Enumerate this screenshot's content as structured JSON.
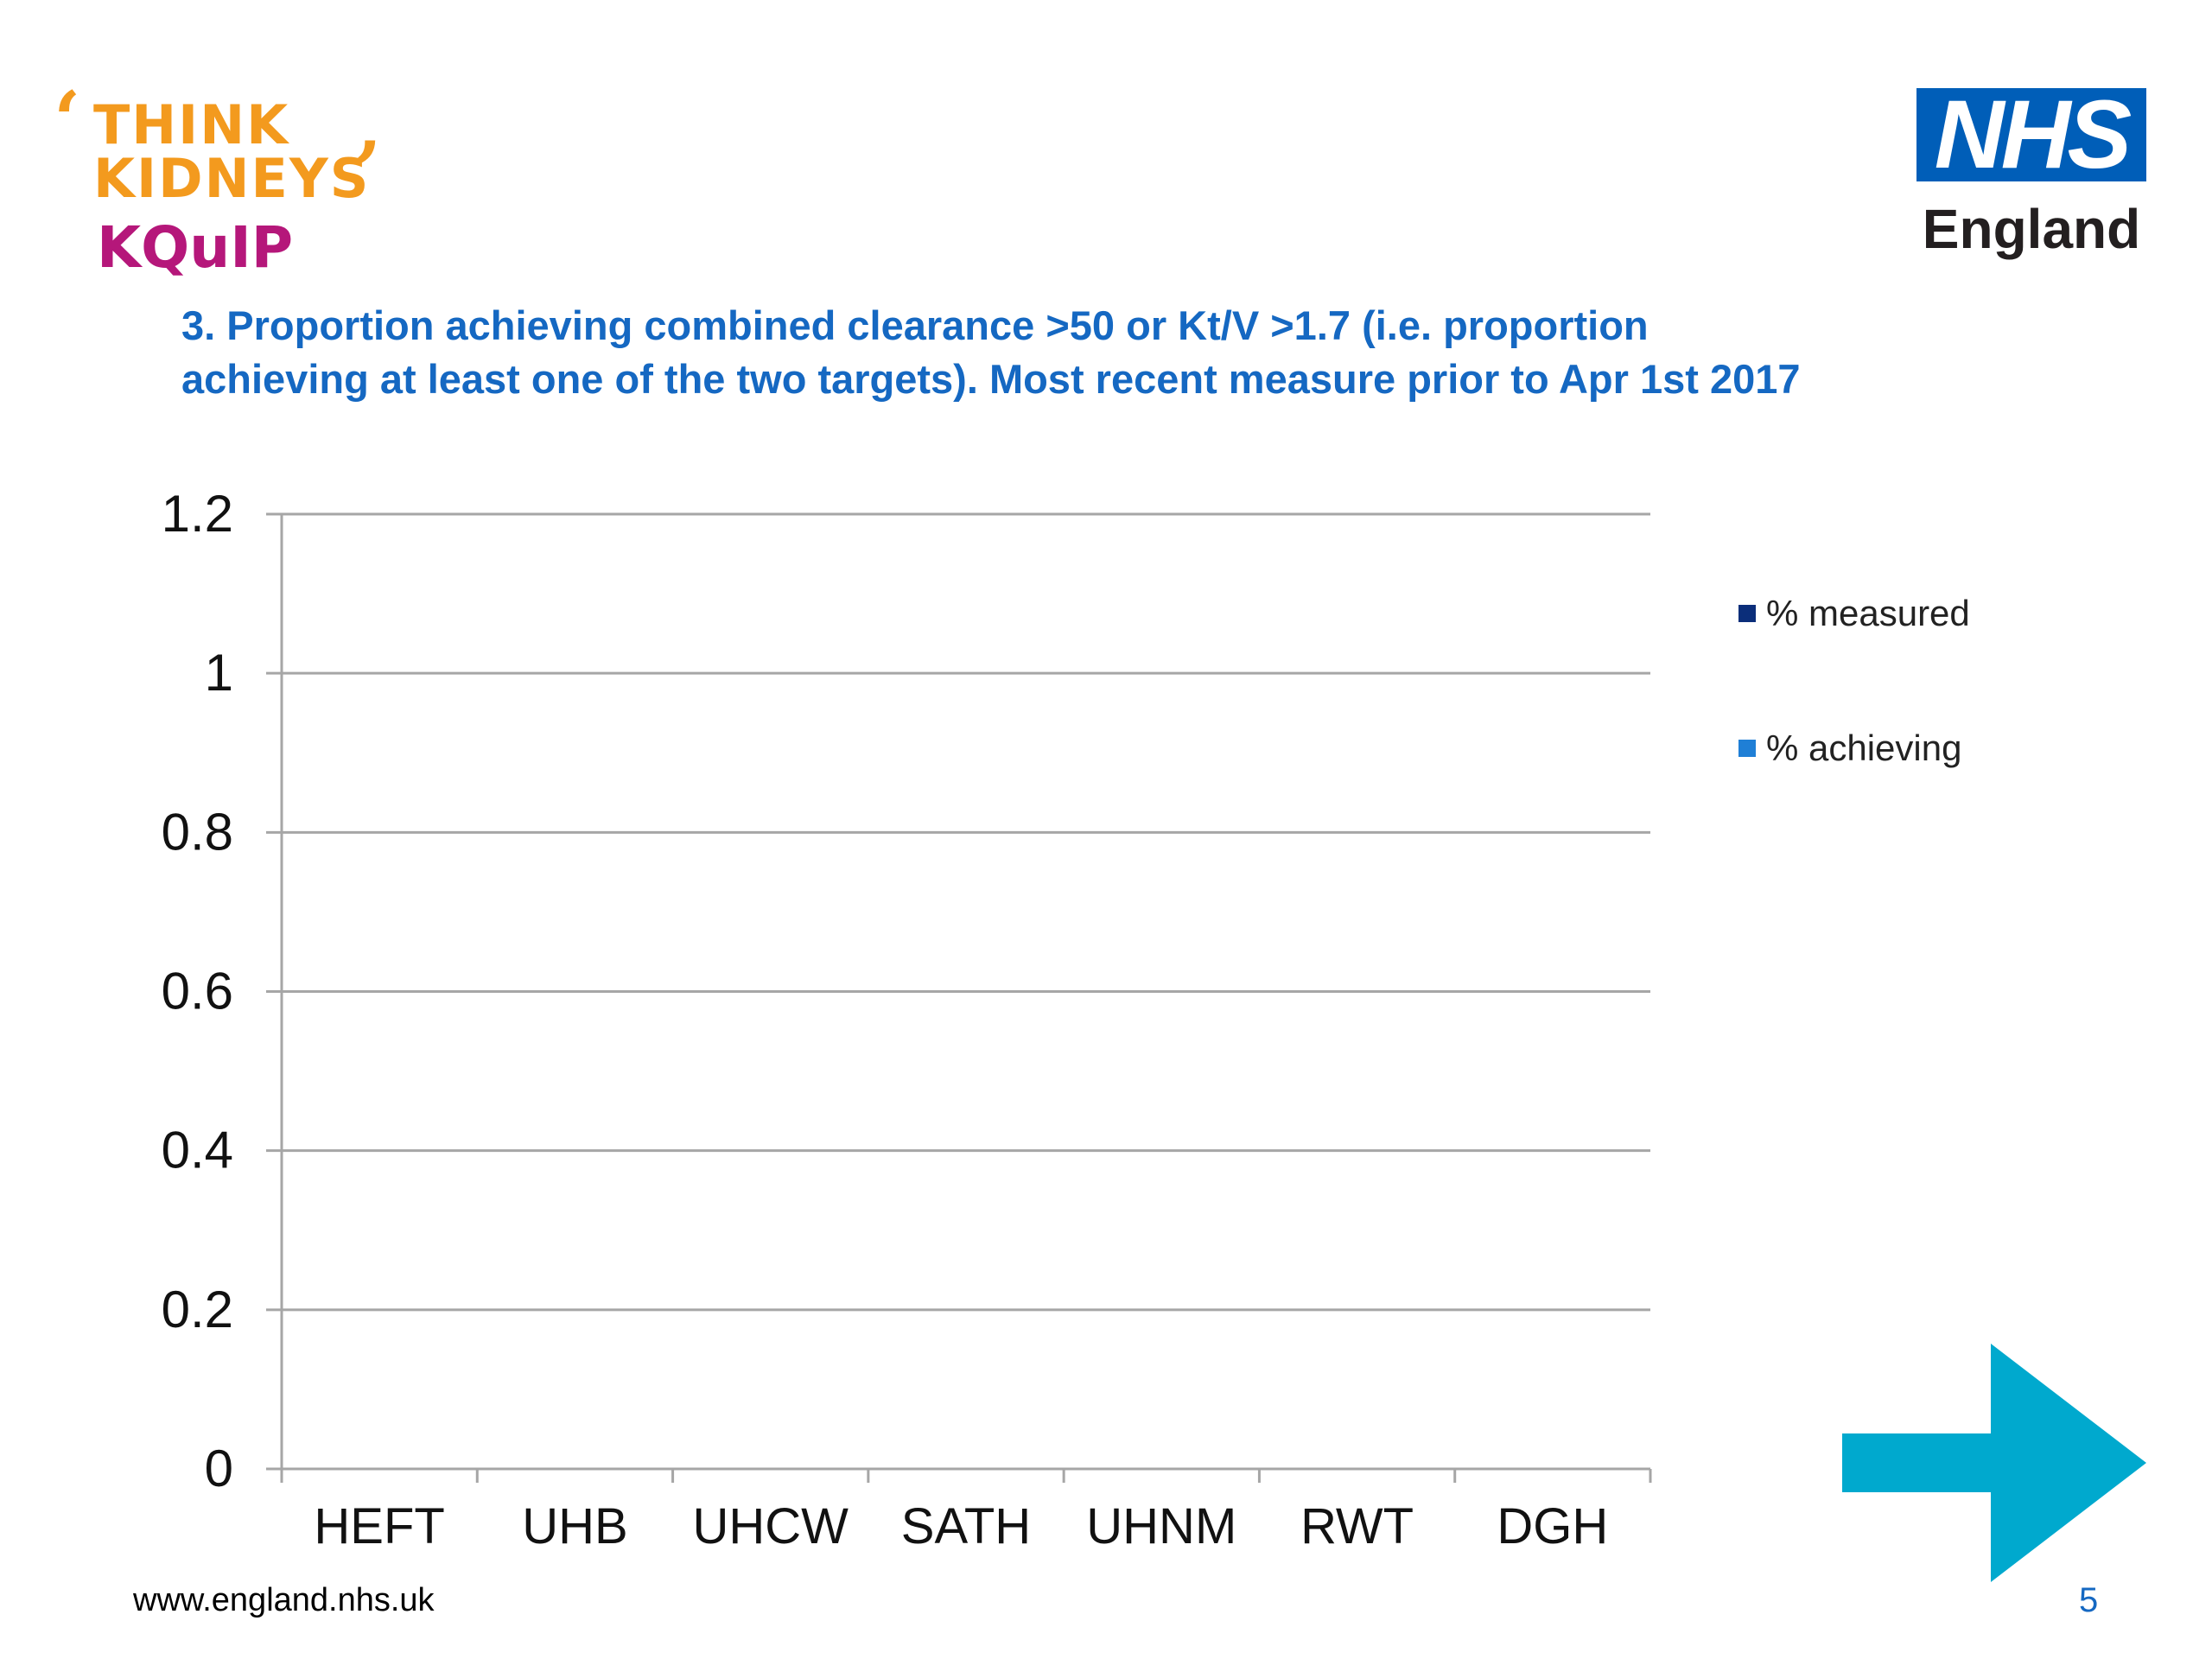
{
  "logos": {
    "think_line1": "THINK",
    "think_line2": "KIDNEYS",
    "kquip": "KQuIP",
    "nhs": "NHS",
    "nhs_region": "England"
  },
  "slide": {
    "title_line1": "3. Proportion achieving combined clearance >50 or Kt/V >1.7 (i.e. proportion",
    "title_line2": "achieving at least one of the two targets). Most recent measure prior to Apr 1st 2017",
    "footer_url": "www.england.nhs.uk",
    "page_number": "5"
  },
  "chart_data": {
    "type": "bar",
    "categories": [
      "HEFT",
      "UHB",
      "UHCW",
      "SATH",
      "UHNM",
      "RWT",
      "DGH"
    ],
    "series": [
      {
        "name": "% measured",
        "values": [
          0,
          0,
          0,
          0,
          0,
          0,
          0
        ],
        "color": "#0b2e7a"
      },
      {
        "name": "% achieving",
        "values": [
          0,
          0,
          0,
          0,
          0,
          0,
          0
        ],
        "color": "#1f7fd6"
      }
    ],
    "yticks": [
      "0",
      "0.2",
      "0.4",
      "0.6",
      "0.8",
      "1",
      "1.2"
    ],
    "ylim": [
      0,
      1.2
    ],
    "grid": true,
    "legend": "right"
  },
  "colors": {
    "arrow": "#00a9ce",
    "title": "#1568c2"
  },
  "icons": {
    "next": "next-arrow-icon"
  }
}
